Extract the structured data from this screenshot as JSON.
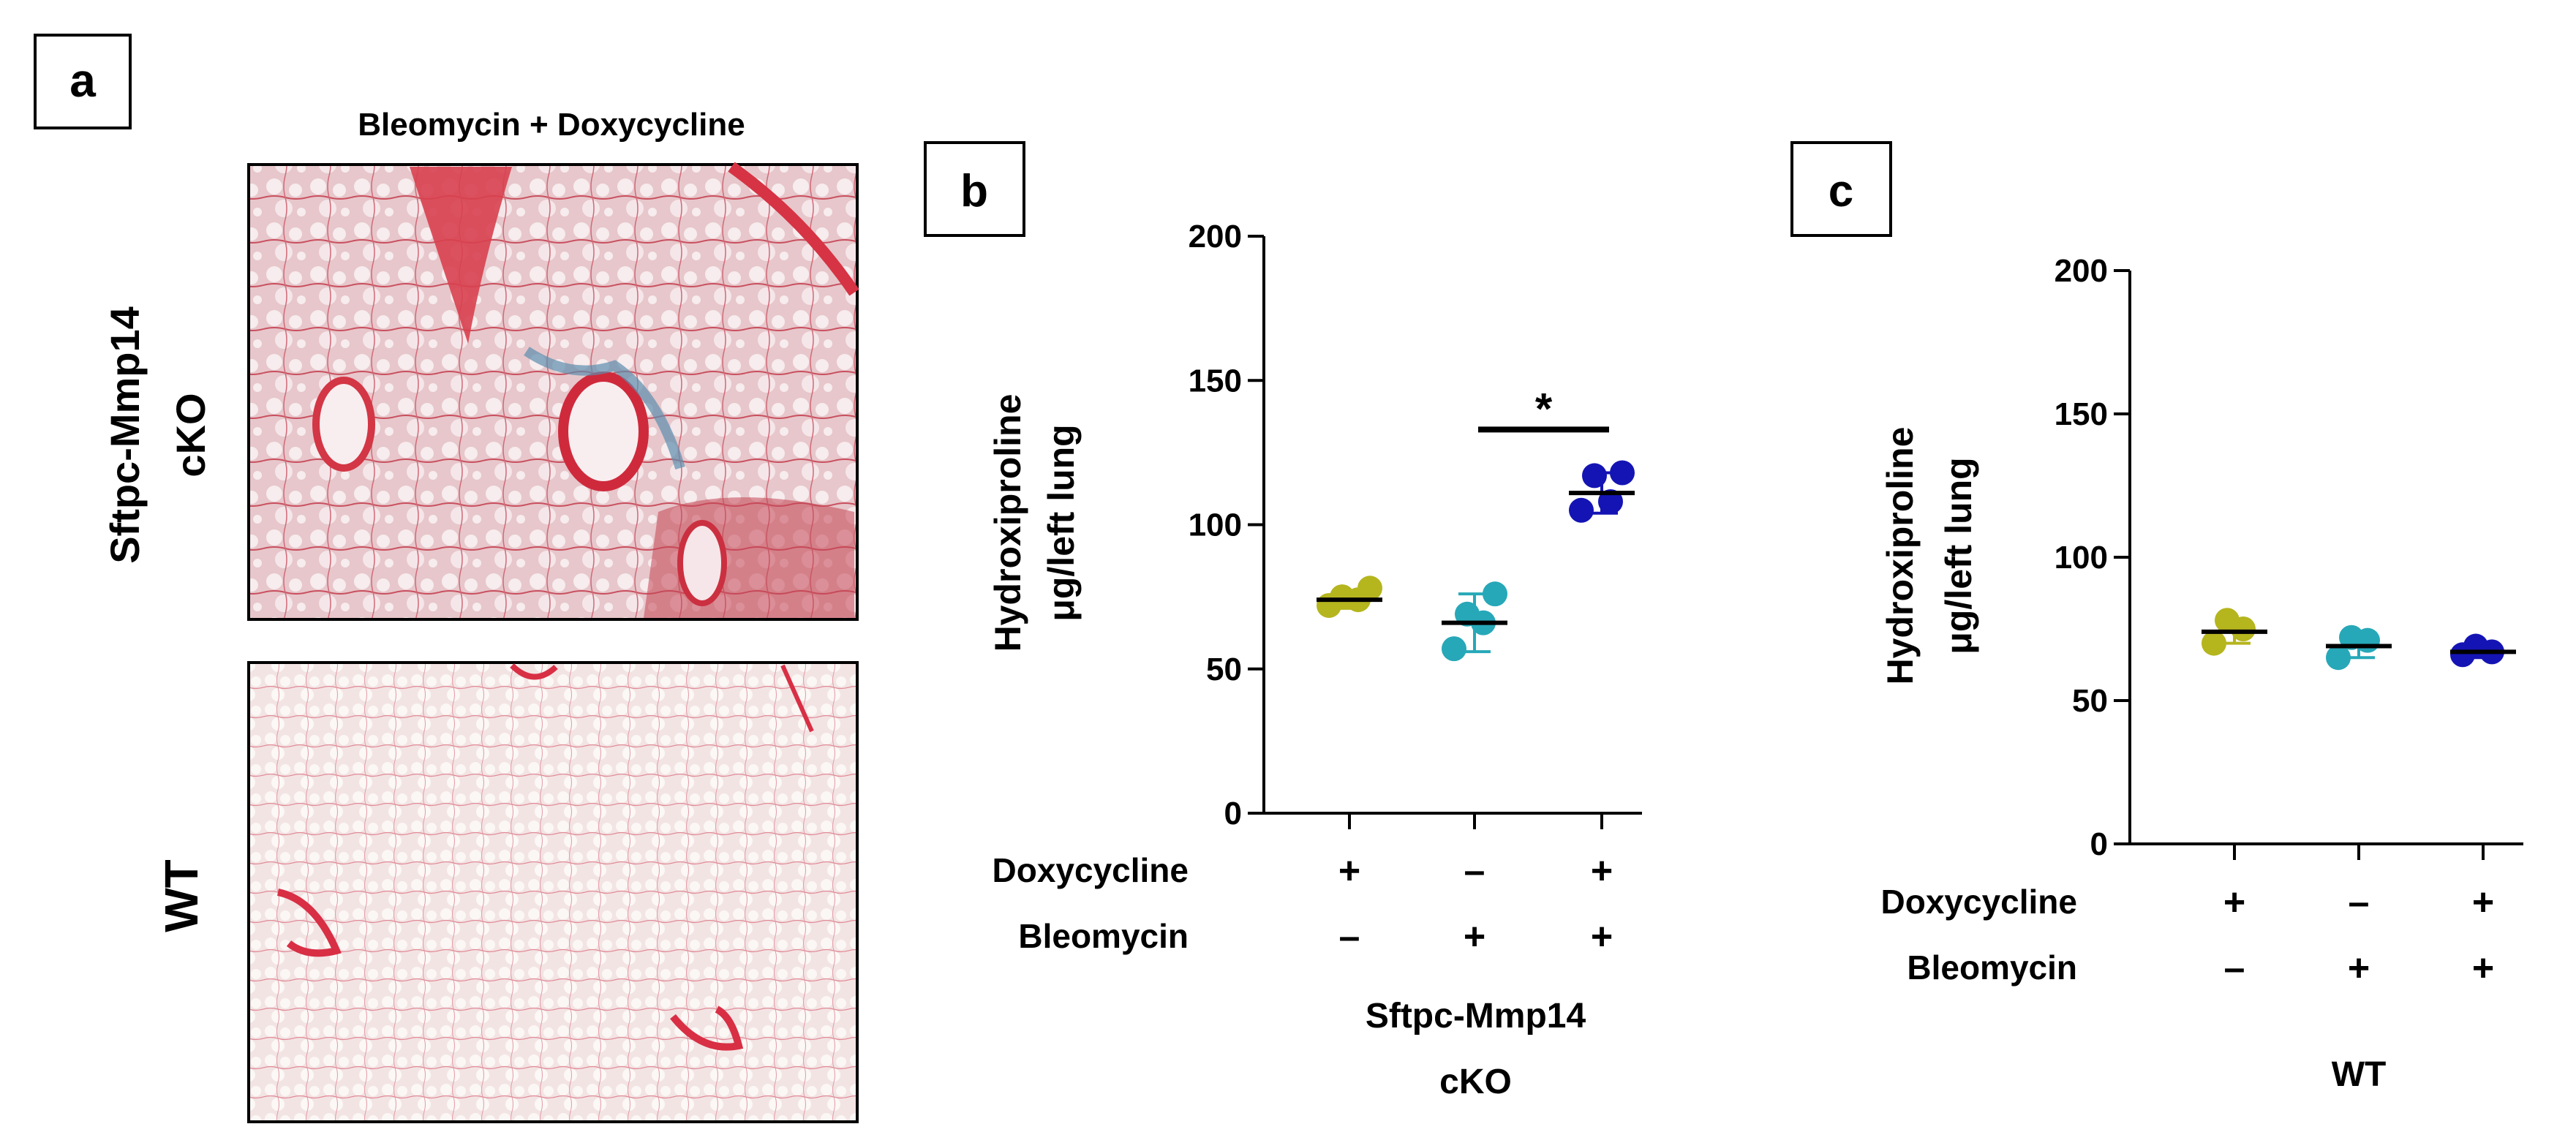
{
  "panels": {
    "a": {
      "label": "a",
      "header": "Bleomycin + Doxycycline",
      "row_labels": [
        "Sftpc-Mmp14",
        "cKO",
        "WT"
      ]
    },
    "b": {
      "label": "b"
    },
    "c": {
      "label": "c"
    }
  },
  "chart_data": [
    {
      "panel": "b",
      "type": "scatter",
      "ylabel_lines": [
        "Hydroxiproline",
        "μg/left lung"
      ],
      "ylim": [
        0,
        200
      ],
      "yticks": [
        0,
        50,
        100,
        150,
        200
      ],
      "row_names": [
        "Doxycycline",
        "Bleomycin"
      ],
      "groups": [
        {
          "doxycycline": "+",
          "bleomycin": "–",
          "color": "#b5b51e",
          "mean": 74,
          "sd": 3,
          "points": [
            72,
            74,
            75,
            78
          ]
        },
        {
          "doxycycline": "–",
          "bleomycin": "+",
          "color": "#27a8b8",
          "mean": 66,
          "sd": 10,
          "points": [
            57,
            66,
            69,
            76
          ]
        },
        {
          "doxycycline": "+",
          "bleomycin": "+",
          "color": "#1414b4",
          "mean": 111,
          "sd": 7,
          "points": [
            105,
            108,
            117,
            118
          ]
        }
      ],
      "significance": {
        "symbol": "*",
        "from_group": 1,
        "to_group": 2,
        "y": 133
      },
      "xlabel_lines": [
        "Sftpc-Mmp14",
        "cKO"
      ]
    },
    {
      "panel": "c",
      "type": "scatter",
      "ylabel_lines": [
        "Hydroxiproline",
        "μg/left lung"
      ],
      "ylim": [
        0,
        200
      ],
      "yticks": [
        0,
        50,
        100,
        150,
        200
      ],
      "row_names": [
        "Doxycycline",
        "Bleomycin"
      ],
      "groups": [
        {
          "doxycycline": "+",
          "bleomycin": "–",
          "color": "#b5b51e",
          "mean": 74,
          "sd": 4,
          "points": [
            70,
            75,
            78
          ]
        },
        {
          "doxycycline": "–",
          "bleomycin": "+",
          "color": "#27a8b8",
          "mean": 69,
          "sd": 4,
          "points": [
            65,
            71,
            72
          ]
        },
        {
          "doxycycline": "+",
          "bleomycin": "+",
          "color": "#1414b4",
          "mean": 67,
          "sd": 2,
          "points": [
            66,
            67,
            69
          ]
        }
      ],
      "xlabel_lines": [
        "WT"
      ]
    }
  ]
}
